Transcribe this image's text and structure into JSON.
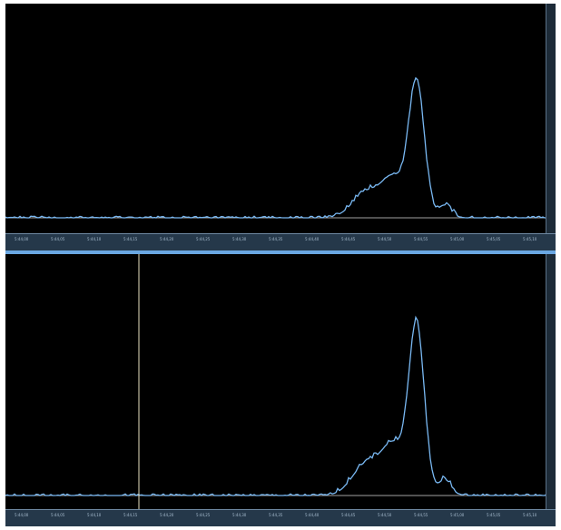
{
  "colors": {
    "waveform": "#79b8f2",
    "baseline": "#d9d9d9",
    "cursor": "#e7dfbf",
    "background": "#000000",
    "ruler_bg": "#25384a"
  },
  "panes": [
    {
      "name": "waveform-top",
      "timeline_labels": [
        "5:44,00",
        "5:44,05",
        "5:44,10",
        "5:44,15",
        "5:44,20",
        "5:44,25",
        "5:44,30",
        "5:44,35",
        "5:44,40",
        "5:44,45",
        "5:44,50",
        "5:44,55",
        "5:45,00",
        "5:45,05",
        "5:45,10"
      ],
      "cursor_visible": false
    },
    {
      "name": "waveform-bottom",
      "timeline_labels": [
        "5:44,00",
        "5:44,05",
        "5:44,10",
        "5:44,15",
        "5:44,20",
        "5:44,25",
        "5:44,30",
        "5:44,35",
        "5:44,40",
        "5:44,45",
        "5:44,50",
        "5:44,55",
        "5:45,00",
        "5:45,05",
        "5:45,10"
      ],
      "cursor_visible": true
    }
  ]
}
